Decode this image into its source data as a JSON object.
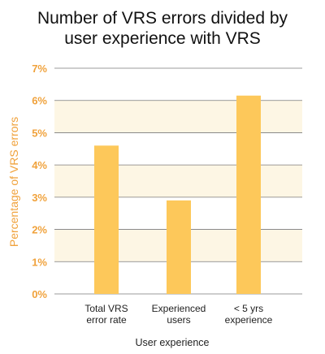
{
  "chart_data": {
    "type": "bar",
    "title_lines": [
      "Number of VRS errors divided by",
      "user experience with VRS"
    ],
    "categories": [
      [
        "Total VRS",
        "error rate"
      ],
      [
        "Experienced",
        "users"
      ],
      [
        "< 5 yrs",
        "experience"
      ]
    ],
    "values": [
      4.6,
      2.9,
      6.15
    ],
    "ylim": [
      0,
      7
    ],
    "yticks": [
      0,
      1,
      2,
      3,
      4,
      5,
      6,
      7
    ],
    "ytick_suffix": "%",
    "ylabel": "Percentage of VRS errors",
    "xlabel": "User experience",
    "grid": true
  },
  "colors": {
    "bar": "#fdc85a",
    "band": "#fdf6e4",
    "grid": "#7a7a7a",
    "accent": "#f0a23c"
  }
}
